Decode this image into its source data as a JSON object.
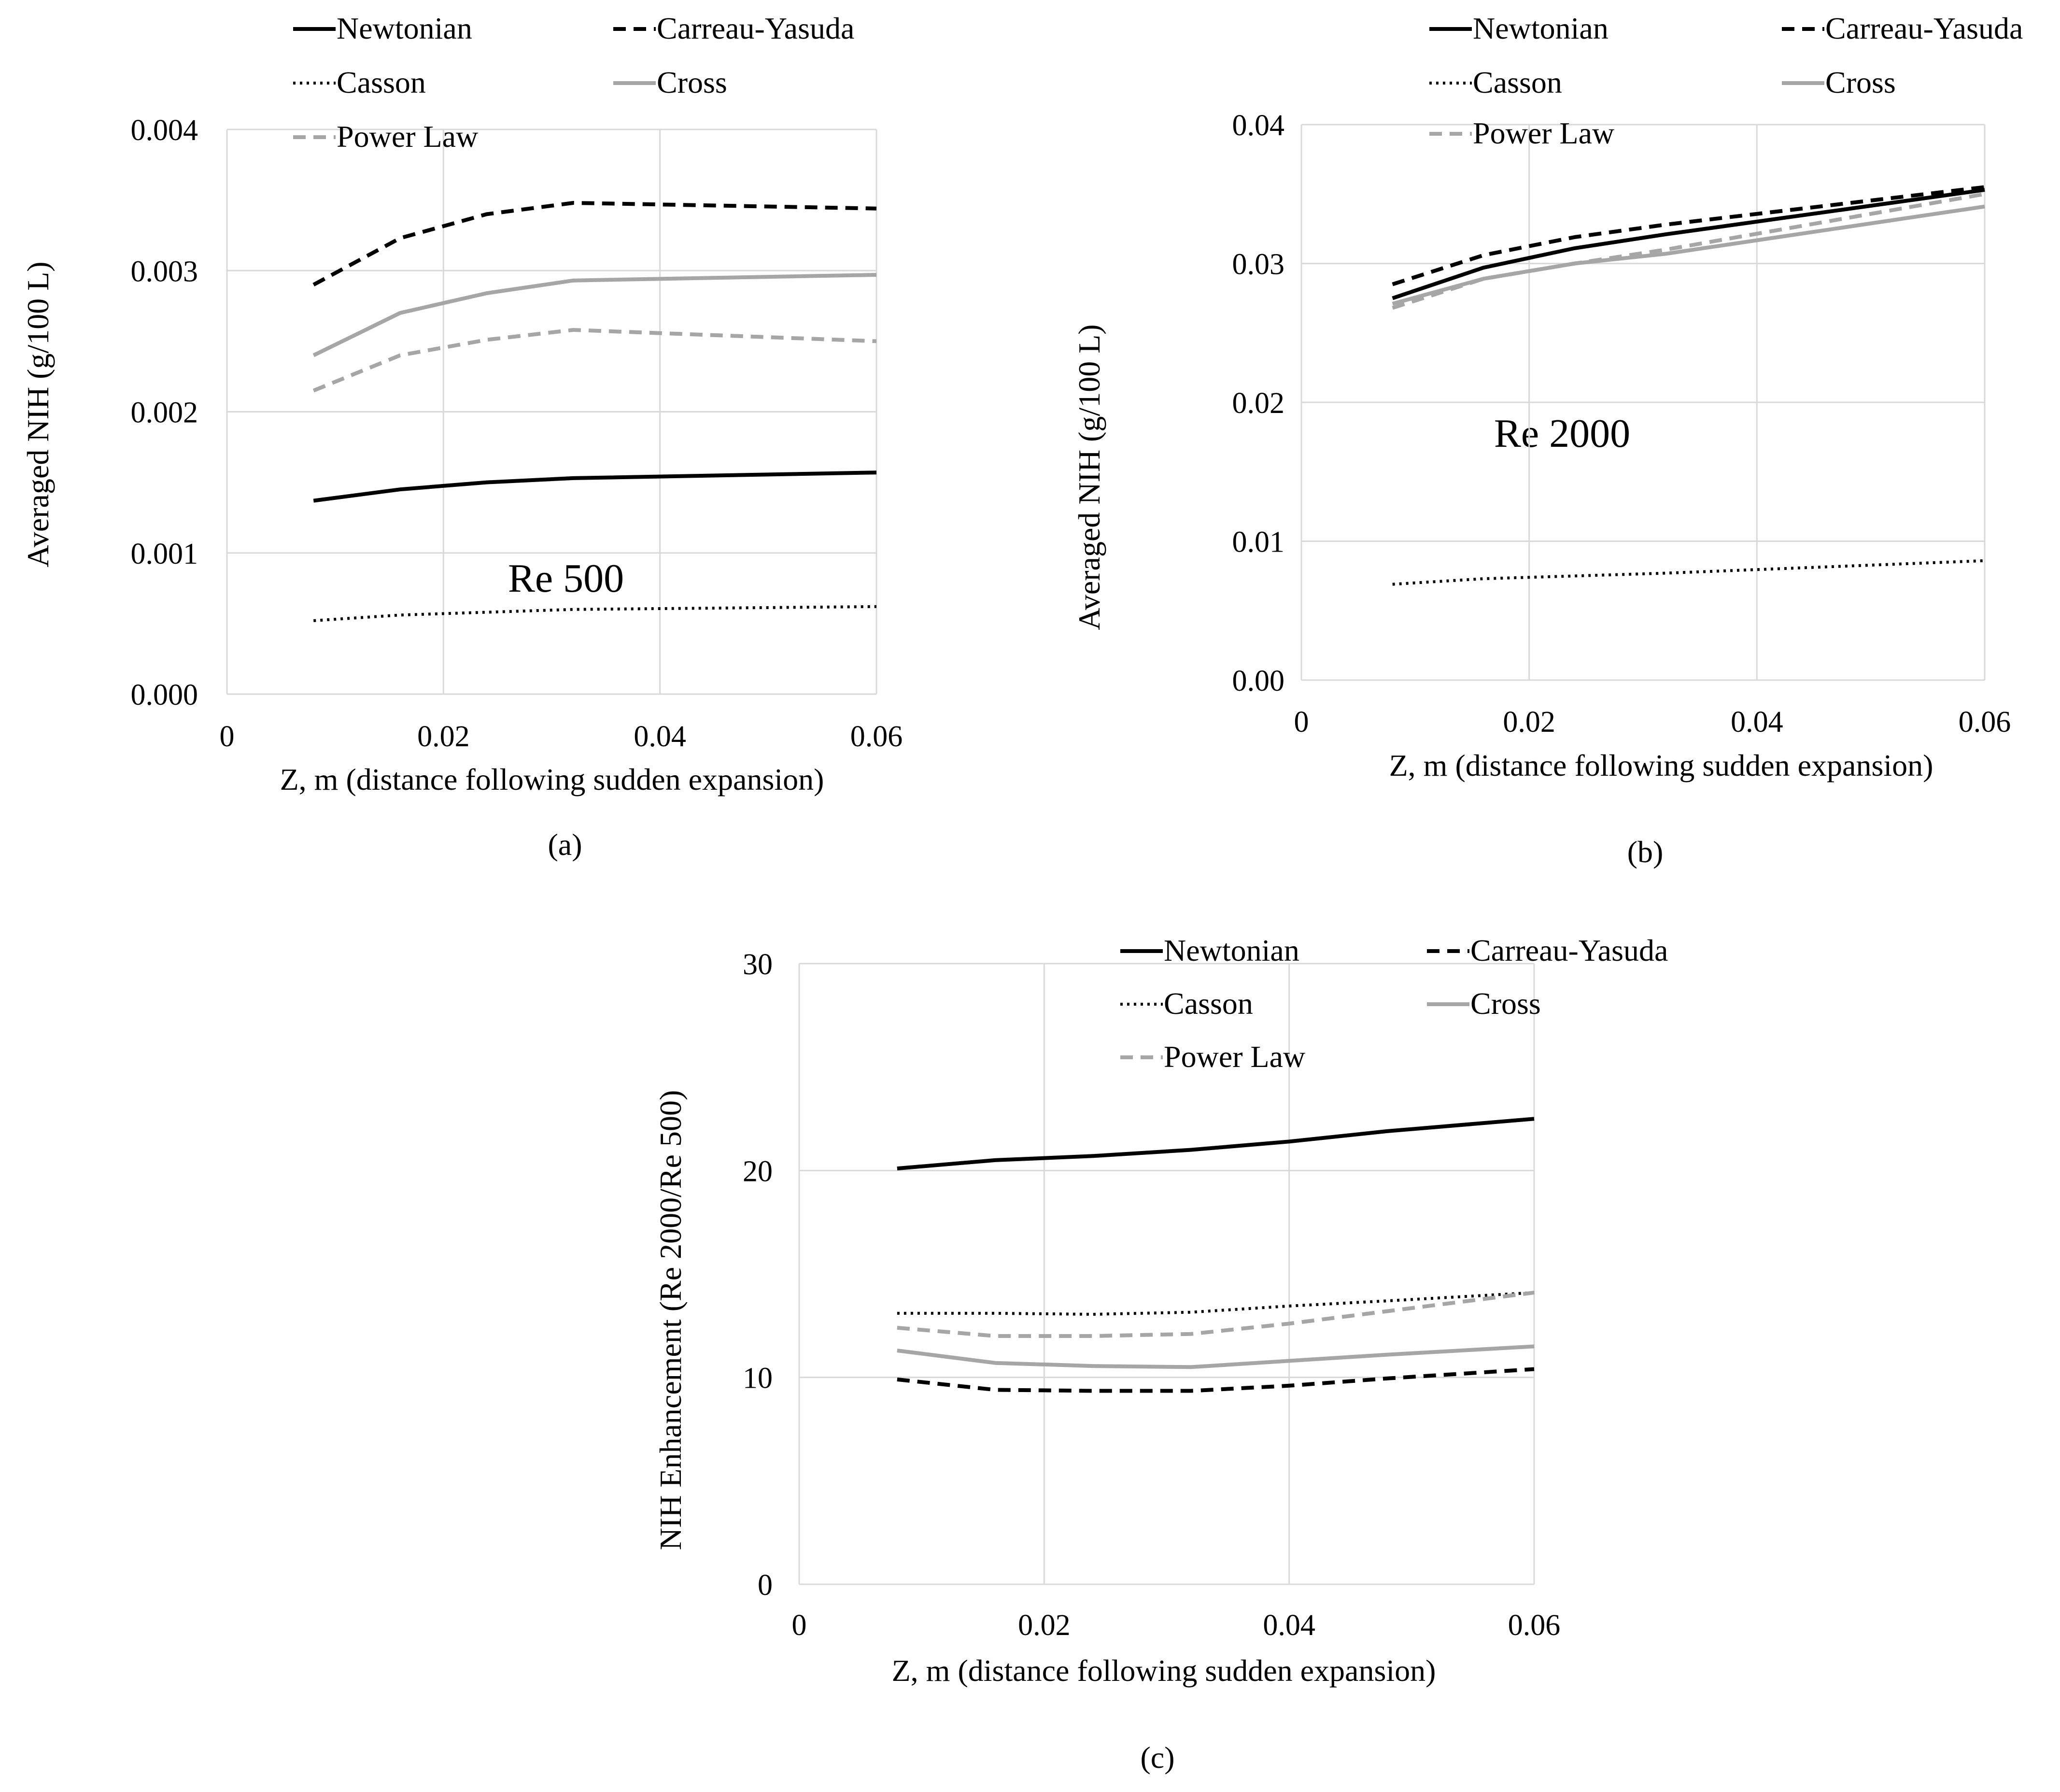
{
  "styles": {
    "Newtonian": {
      "color": "#000000",
      "dash": "none"
    },
    "Carreau-Yasuda": {
      "color": "#000000",
      "dash": "dashed"
    },
    "Casson": {
      "color": "#000000",
      "dash": "dotted"
    },
    "Cross": {
      "color": "#a6a6a6",
      "dash": "none"
    },
    "Power Law": {
      "color": "#a6a6a6",
      "dash": "dashed"
    }
  },
  "chart_data": [
    {
      "type": "line",
      "panel": "(a)",
      "annotation": "Re 500",
      "xlabel": "Z, m (distance following sudden expansion)",
      "ylabel": "Averaged NIH (g/100 L)",
      "xlim": [
        0,
        0.06
      ],
      "ylim": [
        0,
        0.004
      ],
      "xticks": [
        0,
        0.02,
        0.04,
        0.06
      ],
      "xtick_labels": [
        "0",
        "0.02",
        "0.04",
        "0.06"
      ],
      "yticks": [
        0,
        0.001,
        0.002,
        0.003,
        0.004
      ],
      "ytick_labels": [
        "0.000",
        "0.001",
        "0.002",
        "0.003",
        "0.004"
      ],
      "legend": [
        "Newtonian",
        "Carreau-Yasuda",
        "Casson",
        "Cross",
        "Power Law"
      ],
      "series": [
        {
          "name": "Newtonian",
          "x": [
            0.008,
            0.016,
            0.024,
            0.032,
            0.06
          ],
          "values": [
            0.00137,
            0.00145,
            0.0015,
            0.00153,
            0.00157
          ]
        },
        {
          "name": "Carreau-Yasuda",
          "x": [
            0.008,
            0.016,
            0.024,
            0.032,
            0.06
          ],
          "values": [
            0.0029,
            0.00323,
            0.0034,
            0.00348,
            0.00344
          ]
        },
        {
          "name": "Casson",
          "x": [
            0.008,
            0.016,
            0.024,
            0.032,
            0.06
          ],
          "values": [
            0.00052,
            0.00056,
            0.00058,
            0.0006,
            0.00062
          ]
        },
        {
          "name": "Cross",
          "x": [
            0.008,
            0.016,
            0.024,
            0.032,
            0.06
          ],
          "values": [
            0.0024,
            0.0027,
            0.00284,
            0.00293,
            0.00297
          ]
        },
        {
          "name": "Power Law",
          "x": [
            0.008,
            0.016,
            0.024,
            0.032,
            0.06
          ],
          "values": [
            0.00215,
            0.0024,
            0.00251,
            0.00258,
            0.0025
          ]
        }
      ]
    },
    {
      "type": "line",
      "panel": "(b)",
      "annotation": "Re 2000",
      "xlabel": "Z, m (distance following sudden expansion)",
      "ylabel": "Averaged NIH (g/100 L)",
      "xlim": [
        0,
        0.06
      ],
      "ylim": [
        0,
        0.04
      ],
      "xticks": [
        0,
        0.02,
        0.04,
        0.06
      ],
      "xtick_labels": [
        "0",
        "0.02",
        "0.04",
        "0.06"
      ],
      "yticks": [
        0,
        0.01,
        0.02,
        0.03,
        0.04
      ],
      "ytick_labels": [
        "0.00",
        "0.01",
        "0.02",
        "0.03",
        "0.04"
      ],
      "legend": [
        "Newtonian",
        "Carreau-Yasuda",
        "Casson",
        "Cross",
        "Power Law"
      ],
      "series": [
        {
          "name": "Newtonian",
          "x": [
            0.008,
            0.016,
            0.024,
            0.032,
            0.06
          ],
          "values": [
            0.0275,
            0.0297,
            0.0311,
            0.0321,
            0.0353
          ]
        },
        {
          "name": "Carreau-Yasuda",
          "x": [
            0.008,
            0.016,
            0.024,
            0.032,
            0.06
          ],
          "values": [
            0.0285,
            0.0306,
            0.0319,
            0.0328,
            0.0355
          ]
        },
        {
          "name": "Casson",
          "x": [
            0.008,
            0.016,
            0.024,
            0.032,
            0.06
          ],
          "values": [
            0.0069,
            0.0073,
            0.0075,
            0.0077,
            0.0086
          ]
        },
        {
          "name": "Cross",
          "x": [
            0.008,
            0.016,
            0.024,
            0.032,
            0.06
          ],
          "values": [
            0.0271,
            0.0289,
            0.03,
            0.0307,
            0.0341
          ]
        },
        {
          "name": "Power Law",
          "x": [
            0.008,
            0.016,
            0.024,
            0.032,
            0.06
          ],
          "values": [
            0.0268,
            0.0289,
            0.03,
            0.031,
            0.035
          ]
        }
      ]
    },
    {
      "type": "line",
      "panel": "(c)",
      "annotation": "",
      "xlabel": "Z, m (distance following sudden expansion)",
      "ylabel": "NIH Enhancement (Re 2000/Re 500)",
      "xlim": [
        0,
        0.06
      ],
      "ylim": [
        0,
        30
      ],
      "xticks": [
        0,
        0.02,
        0.04,
        0.06
      ],
      "xtick_labels": [
        "0",
        "0.02",
        "0.04",
        "0.06"
      ],
      "yticks": [
        0,
        10,
        20,
        30
      ],
      "ytick_labels": [
        "0",
        "10",
        "20",
        "30"
      ],
      "legend": [
        "Newtonian",
        "Carreau-Yasuda",
        "Casson",
        "Cross",
        "Power Law"
      ],
      "series": [
        {
          "name": "Newtonian",
          "x": [
            0.008,
            0.016,
            0.024,
            0.032,
            0.04,
            0.048,
            0.06
          ],
          "values": [
            20.1,
            20.5,
            20.7,
            21.0,
            21.4,
            21.9,
            22.5
          ]
        },
        {
          "name": "Carreau-Yasuda",
          "x": [
            0.008,
            0.016,
            0.024,
            0.032,
            0.04,
            0.048,
            0.06
          ],
          "values": [
            9.9,
            9.4,
            9.35,
            9.35,
            9.6,
            9.95,
            10.4
          ]
        },
        {
          "name": "Casson",
          "x": [
            0.008,
            0.016,
            0.024,
            0.032,
            0.04,
            0.048,
            0.06
          ],
          "values": [
            13.1,
            13.1,
            13.05,
            13.15,
            13.45,
            13.7,
            14.1
          ]
        },
        {
          "name": "Cross",
          "x": [
            0.008,
            0.016,
            0.024,
            0.032,
            0.04,
            0.048,
            0.06
          ],
          "values": [
            11.3,
            10.7,
            10.55,
            10.5,
            10.8,
            11.1,
            11.5
          ]
        },
        {
          "name": "Power Law",
          "x": [
            0.008,
            0.016,
            0.024,
            0.032,
            0.04,
            0.048,
            0.06
          ],
          "values": [
            12.4,
            12.0,
            12.0,
            12.1,
            12.6,
            13.2,
            14.1
          ]
        }
      ]
    }
  ]
}
